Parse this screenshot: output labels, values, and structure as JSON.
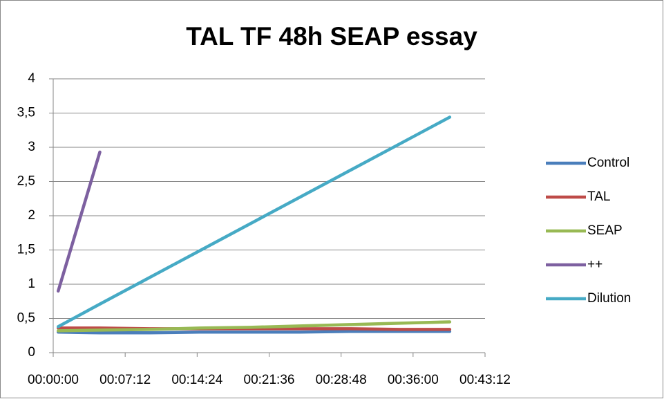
{
  "chart_data": {
    "type": "line",
    "title": "TAL TF 48h SEAP essay",
    "x": [
      30,
      280,
      580,
      880,
      1180,
      1480,
      1780,
      2080,
      2380
    ],
    "series": [
      {
        "name": "Control",
        "color": "#4a7ebb",
        "values": [
          0.3,
          0.29,
          0.29,
          0.3,
          0.3,
          0.3,
          0.31,
          0.31,
          0.31
        ]
      },
      {
        "name": "TAL",
        "color": "#be4b48",
        "values": [
          0.36,
          0.36,
          0.35,
          0.35,
          0.35,
          0.35,
          0.35,
          0.34,
          0.34
        ]
      },
      {
        "name": "SEAP",
        "color": "#98b954",
        "values": [
          0.32,
          0.33,
          0.34,
          0.36,
          0.37,
          0.39,
          0.41,
          0.43,
          0.45
        ]
      },
      {
        "name": "++",
        "color": "#7d60a0",
        "values": [
          0.9,
          2.93,
          null,
          null,
          null,
          null,
          null,
          null,
          null
        ]
      },
      {
        "name": "Dilution",
        "color": "#46aac5",
        "values": [
          0.38,
          0.71,
          1.1,
          1.49,
          1.88,
          2.27,
          2.66,
          3.05,
          3.44
        ]
      }
    ],
    "xlim": [
      0,
      2592
    ],
    "xticks": [
      {
        "value": 0,
        "label": "00:00:00"
      },
      {
        "value": 432,
        "label": "00:07:12"
      },
      {
        "value": 864,
        "label": "00:14:24"
      },
      {
        "value": 1296,
        "label": "00:21:36"
      },
      {
        "value": 1728,
        "label": "00:28:48"
      },
      {
        "value": 2160,
        "label": "00:36:00"
      },
      {
        "value": 2592,
        "label": "00:43:12"
      }
    ],
    "ylim": [
      0,
      4
    ],
    "yticks": [
      0,
      {
        "value": 0.5,
        "label": "0,5"
      },
      1,
      {
        "value": 1.5,
        "label": "1,5"
      },
      2,
      {
        "value": 2.5,
        "label": "2,5"
      },
      3,
      {
        "value": 3.5,
        "label": "3,5"
      },
      4
    ],
    "grid": true,
    "legend": "right"
  }
}
